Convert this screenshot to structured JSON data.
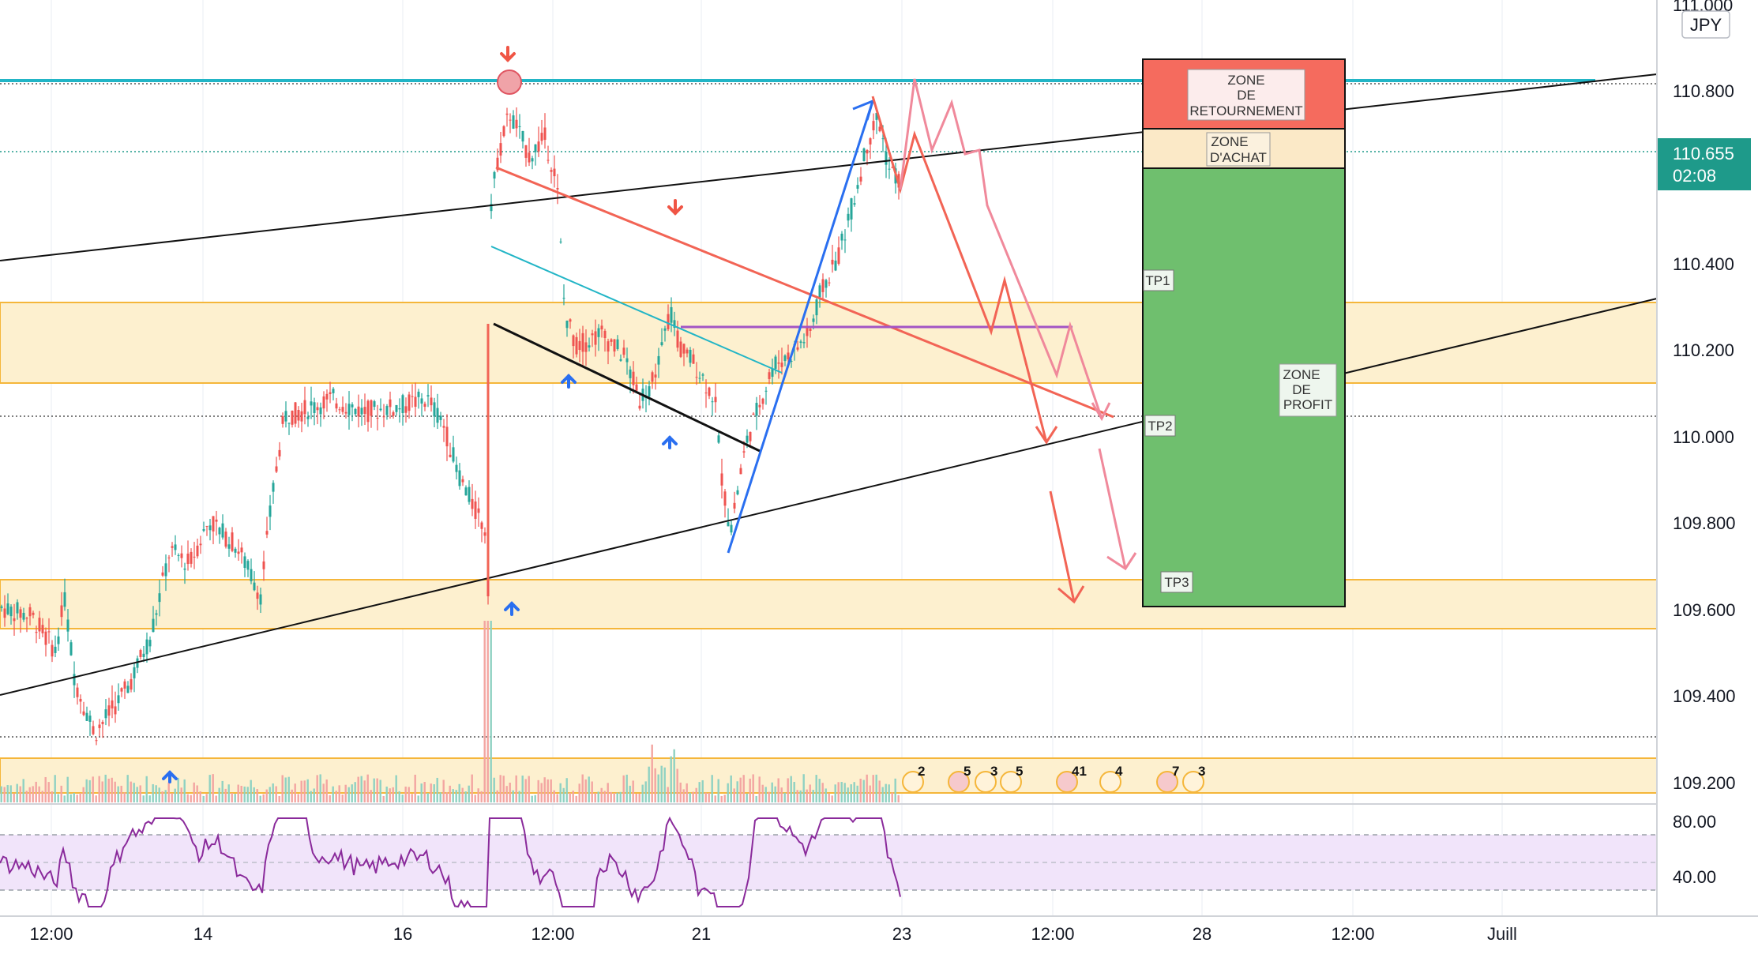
{
  "chart_data": {
    "type": "candlestick",
    "currency_label": "JPY",
    "price_axis": {
      "ylim": [
        109.12,
        111.0
      ],
      "ticks": [
        "111.000",
        "110.800",
        "110.400",
        "110.200",
        "110.000",
        "109.800",
        "109.600",
        "109.400",
        "109.200"
      ]
    },
    "rsi_axis": {
      "ticks": [
        "80.00",
        "40.00"
      ],
      "band": [
        30,
        70
      ]
    },
    "time_axis": {
      "ticks": [
        "12:00",
        "14",
        "16",
        "12:00",
        "21",
        "23",
        "12:00",
        "28",
        "12:00",
        "Juill"
      ]
    },
    "current_price": {
      "value": "110.655",
      "countdown": "02:08",
      "color": "#1e9a8a"
    },
    "annotations": {
      "sell_zone_label": "ZONE\nDE\nRETOURNEMENT",
      "entry_zone_label": "ZONE\nD'ACHAT",
      "profit_zone_label": "ZONE\nDE\nPROFIT",
      "tp1": "TP1",
      "tp2": "TP2",
      "tp3": "TP3"
    },
    "event_markers": [
      "2",
      "5",
      "3",
      "5",
      "41",
      "4",
      "7",
      "3"
    ],
    "key_levels": {
      "resistance": 110.82,
      "support_zone_1": [
        110.12,
        110.31
      ],
      "support_zone_2": [
        109.56,
        109.67
      ],
      "volume_zone": [
        109.16,
        109.26
      ]
    },
    "colors": {
      "up": "#26a69a",
      "down": "#ef5350",
      "resistance_line": "#22b5c6",
      "zone_fill": "#fdf0cf",
      "zone_border": "#f5b63a",
      "sell_zone": "#f56b5e",
      "profit_zone": "#6fbf6e",
      "rsi_line": "#8a2a9b",
      "rsi_band": "#f1e4fa"
    }
  }
}
